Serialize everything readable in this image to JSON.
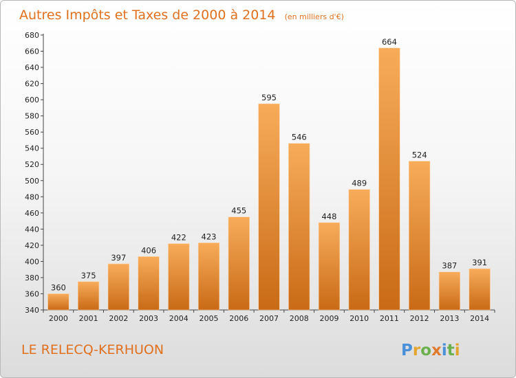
{
  "chart_data": {
    "type": "bar",
    "title": "Autres Impôts et Taxes de 2000 à 2014",
    "subtitle": "(en milliers d'€)",
    "categories": [
      "2000",
      "2001",
      "2002",
      "2003",
      "2004",
      "2005",
      "2006",
      "2007",
      "2008",
      "2009",
      "2010",
      "2011",
      "2012",
      "2013",
      "2014"
    ],
    "values": [
      360,
      375,
      397,
      406,
      422,
      423,
      455,
      595,
      546,
      448,
      489,
      664,
      524,
      387,
      391
    ],
    "ylim": [
      340,
      680
    ],
    "yticks": [
      340,
      360,
      380,
      400,
      420,
      440,
      460,
      480,
      500,
      520,
      540,
      560,
      580,
      600,
      620,
      640,
      660,
      680
    ],
    "xlabel": "",
    "ylabel": "",
    "grid": false,
    "bar_color": "#f0932f",
    "bar_gradient": [
      "#f7ac5a",
      "#c96a16"
    ]
  },
  "commune": "LE RELECQ-KERHUON",
  "logo": {
    "letters": [
      "P",
      "r",
      "o",
      "x",
      "i",
      "t",
      "i"
    ],
    "colors": [
      "#4a90d9",
      "#e2a62e",
      "#6ab04c",
      "#e07a2e",
      "#4a90d9",
      "#6ab04c",
      "#e2a62e"
    ]
  },
  "accent_color": "#e0701e"
}
